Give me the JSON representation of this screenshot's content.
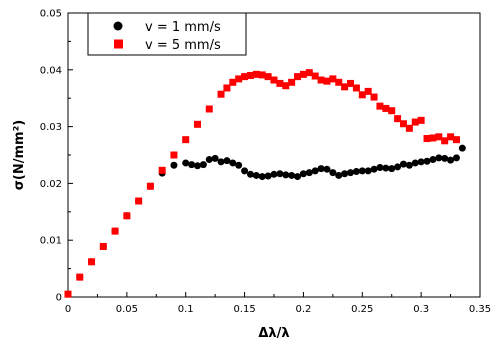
{
  "chart_data": {
    "type": "scatter",
    "title": "",
    "xlabel": "Δλ/λ",
    "ylabel": "σ(N/mm²)",
    "xlim": [
      0,
      0.35
    ],
    "ylim": [
      0,
      0.05
    ],
    "x_ticks": [
      0,
      0.05,
      0.1,
      0.15,
      0.2,
      0.25,
      0.3,
      0.35
    ],
    "x_tick_labels": [
      "0",
      "0.05",
      "0.1",
      "0.15",
      "0.2",
      "0.25",
      "0.3",
      "0.35"
    ],
    "y_ticks": [
      0,
      0.01,
      0.02,
      0.03,
      0.04,
      0.05
    ],
    "y_tick_labels": [
      "0",
      "0.01",
      "0.02",
      "0.03",
      "0.04",
      "0.05"
    ],
    "grid": false,
    "legend_position": "top-left",
    "series": [
      {
        "name": "v = 1 mm/s",
        "color": "#000000",
        "marker": "circle",
        "x": [
          0.0,
          0.01,
          0.02,
          0.03,
          0.04,
          0.05,
          0.06,
          0.07,
          0.08,
          0.09,
          0.1,
          0.105,
          0.11,
          0.115,
          0.12,
          0.125,
          0.13,
          0.135,
          0.14,
          0.145,
          0.15,
          0.155,
          0.16,
          0.165,
          0.17,
          0.175,
          0.18,
          0.185,
          0.19,
          0.195,
          0.2,
          0.205,
          0.21,
          0.215,
          0.22,
          0.225,
          0.23,
          0.235,
          0.24,
          0.245,
          0.25,
          0.255,
          0.26,
          0.265,
          0.27,
          0.275,
          0.28,
          0.285,
          0.29,
          0.295,
          0.3,
          0.305,
          0.31,
          0.315,
          0.32,
          0.325,
          0.33,
          0.335
        ],
        "y": [
          0.0005,
          0.0035,
          0.0062,
          0.0089,
          0.0116,
          0.0143,
          0.0169,
          0.0195,
          0.0218,
          0.0232,
          0.0236,
          0.0233,
          0.0231,
          0.0233,
          0.0242,
          0.0244,
          0.0238,
          0.024,
          0.0236,
          0.0232,
          0.0222,
          0.0216,
          0.0214,
          0.0212,
          0.0213,
          0.0216,
          0.0217,
          0.0215,
          0.0214,
          0.0212,
          0.0217,
          0.0219,
          0.0222,
          0.0226,
          0.0225,
          0.0219,
          0.0214,
          0.0217,
          0.0219,
          0.0221,
          0.0222,
          0.0222,
          0.0225,
          0.0228,
          0.0227,
          0.0226,
          0.0229,
          0.0234,
          0.0232,
          0.0236,
          0.0238,
          0.0239,
          0.0242,
          0.0245,
          0.0244,
          0.0241,
          0.0245,
          0.0262
        ]
      },
      {
        "name": "v = 5 mm/s",
        "color": "#ff0000",
        "marker": "square",
        "x": [
          0.0,
          0.01,
          0.02,
          0.03,
          0.04,
          0.05,
          0.06,
          0.07,
          0.08,
          0.09,
          0.1,
          0.11,
          0.12,
          0.13,
          0.135,
          0.14,
          0.145,
          0.15,
          0.155,
          0.16,
          0.165,
          0.17,
          0.175,
          0.18,
          0.185,
          0.19,
          0.195,
          0.2,
          0.205,
          0.21,
          0.215,
          0.22,
          0.225,
          0.23,
          0.235,
          0.24,
          0.245,
          0.25,
          0.255,
          0.26,
          0.265,
          0.27,
          0.275,
          0.28,
          0.285,
          0.29,
          0.295,
          0.3,
          0.305,
          0.31,
          0.315,
          0.32,
          0.325,
          0.33
        ],
        "y": [
          0.0005,
          0.0035,
          0.0062,
          0.0089,
          0.0116,
          0.0143,
          0.0169,
          0.0195,
          0.0223,
          0.025,
          0.0277,
          0.0304,
          0.0331,
          0.0357,
          0.0368,
          0.0378,
          0.0384,
          0.0388,
          0.039,
          0.0392,
          0.0391,
          0.0388,
          0.0382,
          0.0376,
          0.0372,
          0.0378,
          0.0388,
          0.0392,
          0.0395,
          0.0389,
          0.0382,
          0.038,
          0.0384,
          0.0378,
          0.037,
          0.0376,
          0.0368,
          0.0356,
          0.0362,
          0.0352,
          0.0336,
          0.0332,
          0.0328,
          0.0314,
          0.0305,
          0.0297,
          0.0308,
          0.0311,
          0.0279,
          0.028,
          0.0282,
          0.0275,
          0.0282,
          0.0277
        ]
      }
    ]
  }
}
